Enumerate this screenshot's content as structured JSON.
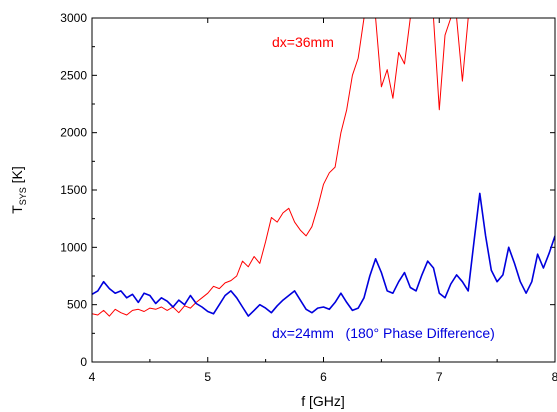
{
  "chart_data": {
    "type": "line",
    "xlabel": "f [GHz]",
    "ylabel_main": "T",
    "ylabel_sub": "SYS",
    "ylabel_unit": " [K]",
    "xlim": [
      4,
      8
    ],
    "ylim": [
      0,
      3000
    ],
    "x_ticks": [
      4,
      5,
      6,
      7,
      8
    ],
    "x_tick_labels": [
      "4",
      "5",
      "6",
      "7",
      "8"
    ],
    "y_ticks": [
      0,
      500,
      1000,
      1500,
      2000,
      2500,
      3000
    ],
    "y_tick_labels": [
      "0",
      "500",
      "1000",
      "1500",
      "2000",
      "2500",
      "3000"
    ],
    "grid": false,
    "annotations": [
      {
        "text": "dx=36mm",
        "color": "#ff0000"
      },
      {
        "text": "dx=24mm   (180° Phase Difference)",
        "color": "#0000dd"
      }
    ],
    "series": [
      {
        "color": "#ff0000",
        "x": [
          4.0,
          4.05,
          4.1,
          4.15,
          4.2,
          4.25,
          4.3,
          4.35,
          4.4,
          4.45,
          4.5,
          4.55,
          4.6,
          4.65,
          4.7,
          4.75,
          4.8,
          4.85,
          4.9,
          4.95,
          5.0,
          5.05,
          5.1,
          5.15,
          5.2,
          5.25,
          5.3,
          5.35,
          5.4,
          5.45,
          5.5,
          5.55,
          5.6,
          5.65,
          5.7,
          5.75,
          5.8,
          5.85,
          5.9,
          5.95,
          6.0,
          6.05,
          6.1,
          6.15,
          6.2,
          6.25,
          6.3,
          6.35,
          6.4,
          6.45,
          6.5,
          6.55,
          6.6,
          6.65,
          6.7,
          6.75,
          6.8,
          6.85,
          6.9,
          6.95,
          7.0,
          7.05,
          7.1,
          7.15,
          7.2,
          7.25
        ],
        "y": [
          420,
          410,
          450,
          400,
          460,
          430,
          410,
          450,
          460,
          440,
          470,
          460,
          480,
          450,
          480,
          430,
          490,
          470,
          520,
          560,
          600,
          660,
          640,
          690,
          710,
          750,
          880,
          830,
          920,
          860,
          1050,
          1260,
          1220,
          1300,
          1340,
          1220,
          1150,
          1100,
          1180,
          1350,
          1550,
          1650,
          1700,
          2000,
          2200,
          2500,
          2650,
          3000,
          3000,
          3000,
          2400,
          2550,
          2300,
          2700,
          2600,
          3000,
          3000,
          3000,
          3000,
          3000,
          2200,
          2850,
          3000,
          3000,
          2450,
          3000
        ]
      },
      {
        "color": "#0000dd",
        "x": [
          4.0,
          4.05,
          4.1,
          4.15,
          4.2,
          4.25,
          4.3,
          4.35,
          4.4,
          4.45,
          4.5,
          4.55,
          4.6,
          4.65,
          4.7,
          4.75,
          4.8,
          4.85,
          4.9,
          4.95,
          5.0,
          5.05,
          5.1,
          5.15,
          5.2,
          5.25,
          5.3,
          5.35,
          5.4,
          5.45,
          5.5,
          5.55,
          5.6,
          5.65,
          5.7,
          5.75,
          5.8,
          5.85,
          5.9,
          5.95,
          6.0,
          6.05,
          6.1,
          6.15,
          6.2,
          6.25,
          6.3,
          6.35,
          6.4,
          6.45,
          6.5,
          6.55,
          6.6,
          6.65,
          6.7,
          6.75,
          6.8,
          6.85,
          6.9,
          6.95,
          7.0,
          7.05,
          7.1,
          7.15,
          7.2,
          7.25,
          7.3,
          7.35,
          7.4,
          7.45,
          7.5,
          7.55,
          7.6,
          7.65,
          7.7,
          7.75,
          7.8,
          7.85,
          7.9,
          7.95,
          8.0
        ],
        "y": [
          590,
          620,
          700,
          640,
          600,
          620,
          560,
          590,
          520,
          600,
          580,
          510,
          560,
          530,
          480,
          540,
          500,
          580,
          510,
          480,
          440,
          420,
          500,
          580,
          620,
          560,
          480,
          400,
          450,
          500,
          470,
          430,
          490,
          540,
          580,
          620,
          540,
          460,
          430,
          470,
          480,
          460,
          520,
          600,
          520,
          450,
          470,
          560,
          750,
          900,
          780,
          620,
          600,
          700,
          780,
          650,
          620,
          760,
          880,
          820,
          600,
          560,
          680,
          760,
          700,
          620,
          1050,
          1470,
          1100,
          800,
          700,
          760,
          1000,
          860,
          700,
          600,
          700,
          940,
          820,
          950,
          1100
        ]
      }
    ]
  },
  "colors": {
    "axis": "#000000",
    "red_series": "#ff0000",
    "blue_series": "#0000dd"
  }
}
